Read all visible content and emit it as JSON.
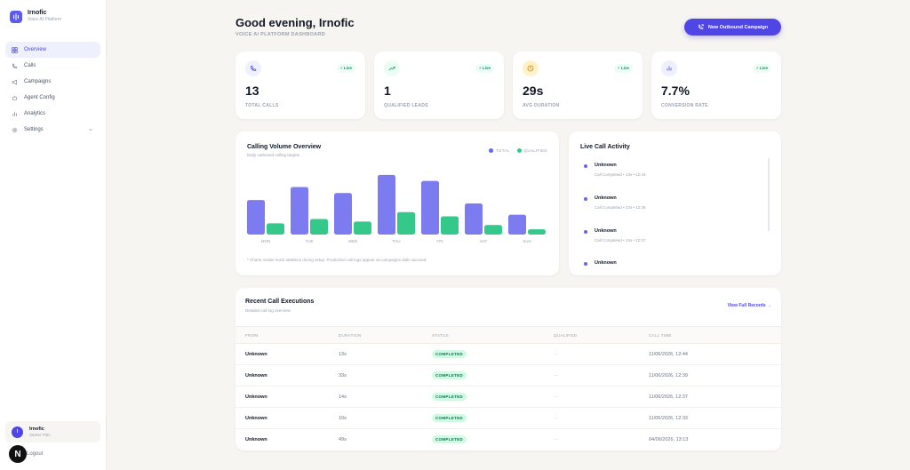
{
  "sidebar": {
    "brand_name": "Irnofic",
    "brand_sub": "Voice AI Platform",
    "items": [
      {
        "label": "Overview",
        "icon": "grid-icon"
      },
      {
        "label": "Calls",
        "icon": "phone-icon"
      },
      {
        "label": "Campaigns",
        "icon": "megaphone-icon"
      },
      {
        "label": "Agent Config",
        "icon": "bot-icon"
      },
      {
        "label": "Analytics",
        "icon": "bar-chart-icon"
      },
      {
        "label": "Settings",
        "icon": "gear-icon"
      }
    ],
    "user": {
      "initial": "I",
      "name": "Irnofic",
      "plan": "Starter Plan"
    },
    "logout_label": "Logout",
    "next_badge": "N"
  },
  "header": {
    "greeting": "Good evening, Irnofic",
    "subtitle": "VOICE AI PLATFORM DASHBOARD",
    "new_campaign_label": "New Outbound Campaign"
  },
  "stats": [
    {
      "value": "13",
      "label": "TOTAL CALLS",
      "live": "Live",
      "icon": "phone-icon",
      "color": "#4f46e5",
      "bg": "#eef0fd"
    },
    {
      "value": "1",
      "label": "QUALIFIED LEADS",
      "live": "Live",
      "icon": "trending-up-icon",
      "color": "#059669",
      "bg": "#ecfdf5"
    },
    {
      "value": "29s",
      "label": "AVG DURATION",
      "live": "Live",
      "icon": "clock-icon",
      "color": "#d97706",
      "bg": "#fef3c7"
    },
    {
      "value": "7.7%",
      "label": "CONVERSION RATE",
      "live": "Live",
      "icon": "bar-chart-icon",
      "color": "#4f46e5",
      "bg": "#eef0fd"
    }
  ],
  "chart": {
    "title": "Calling Volume Overview",
    "subtitle": "Daily outbound calling targets",
    "note": "* Charts render mock statistics during setup. Production call logs appear as campaigns dials succeed."
  },
  "chart_data": {
    "type": "bar",
    "categories": [
      "MON",
      "TUE",
      "WED",
      "THU",
      "FRI",
      "SAT",
      "SUN"
    ],
    "series": [
      {
        "name": "TOTAL",
        "color": "#7c7cf0",
        "values": [
          40,
          55,
          48,
          69,
          62,
          36,
          23
        ]
      },
      {
        "name": "QUALIFIED",
        "color": "#34c88a",
        "values": [
          13,
          18,
          15,
          26,
          21,
          11,
          6
        ]
      }
    ],
    "ylim": [
      0,
      75
    ],
    "grid": false,
    "legend": "top-right"
  },
  "live_activity": {
    "title": "Live Call Activity",
    "items": [
      {
        "name": "Unknown",
        "meta": "Call Completed • 13s • 12:44"
      },
      {
        "name": "Unknown",
        "meta": "Call Completed • 33s • 12:39"
      },
      {
        "name": "Unknown",
        "meta": "Call Completed • 14s • 12:37"
      },
      {
        "name": "Unknown",
        "meta": ""
      }
    ]
  },
  "table": {
    "title": "Recent Call Executions",
    "subtitle": "Detailed call log overview",
    "view_all": "View Full Records →",
    "columns": [
      "FROM",
      "DURATION",
      "STATUS",
      "QUALIFIED",
      "CALL TIME"
    ],
    "rows": [
      {
        "from": "Unknown",
        "duration": "13s",
        "status": "COMPLETED",
        "qualified": "—",
        "time": "11/06/2026, 12:44"
      },
      {
        "from": "Unknown",
        "duration": "33s",
        "status": "COMPLETED",
        "qualified": "—",
        "time": "11/06/2026, 12:39"
      },
      {
        "from": "Unknown",
        "duration": "14s",
        "status": "COMPLETED",
        "qualified": "—",
        "time": "11/06/2026, 12:37"
      },
      {
        "from": "Unknown",
        "duration": "10s",
        "status": "COMPLETED",
        "qualified": "—",
        "time": "11/06/2026, 12:33"
      },
      {
        "from": "Unknown",
        "duration": "49s",
        "status": "COMPLETED",
        "qualified": "—",
        "time": "04/06/2026, 13:13"
      }
    ]
  }
}
